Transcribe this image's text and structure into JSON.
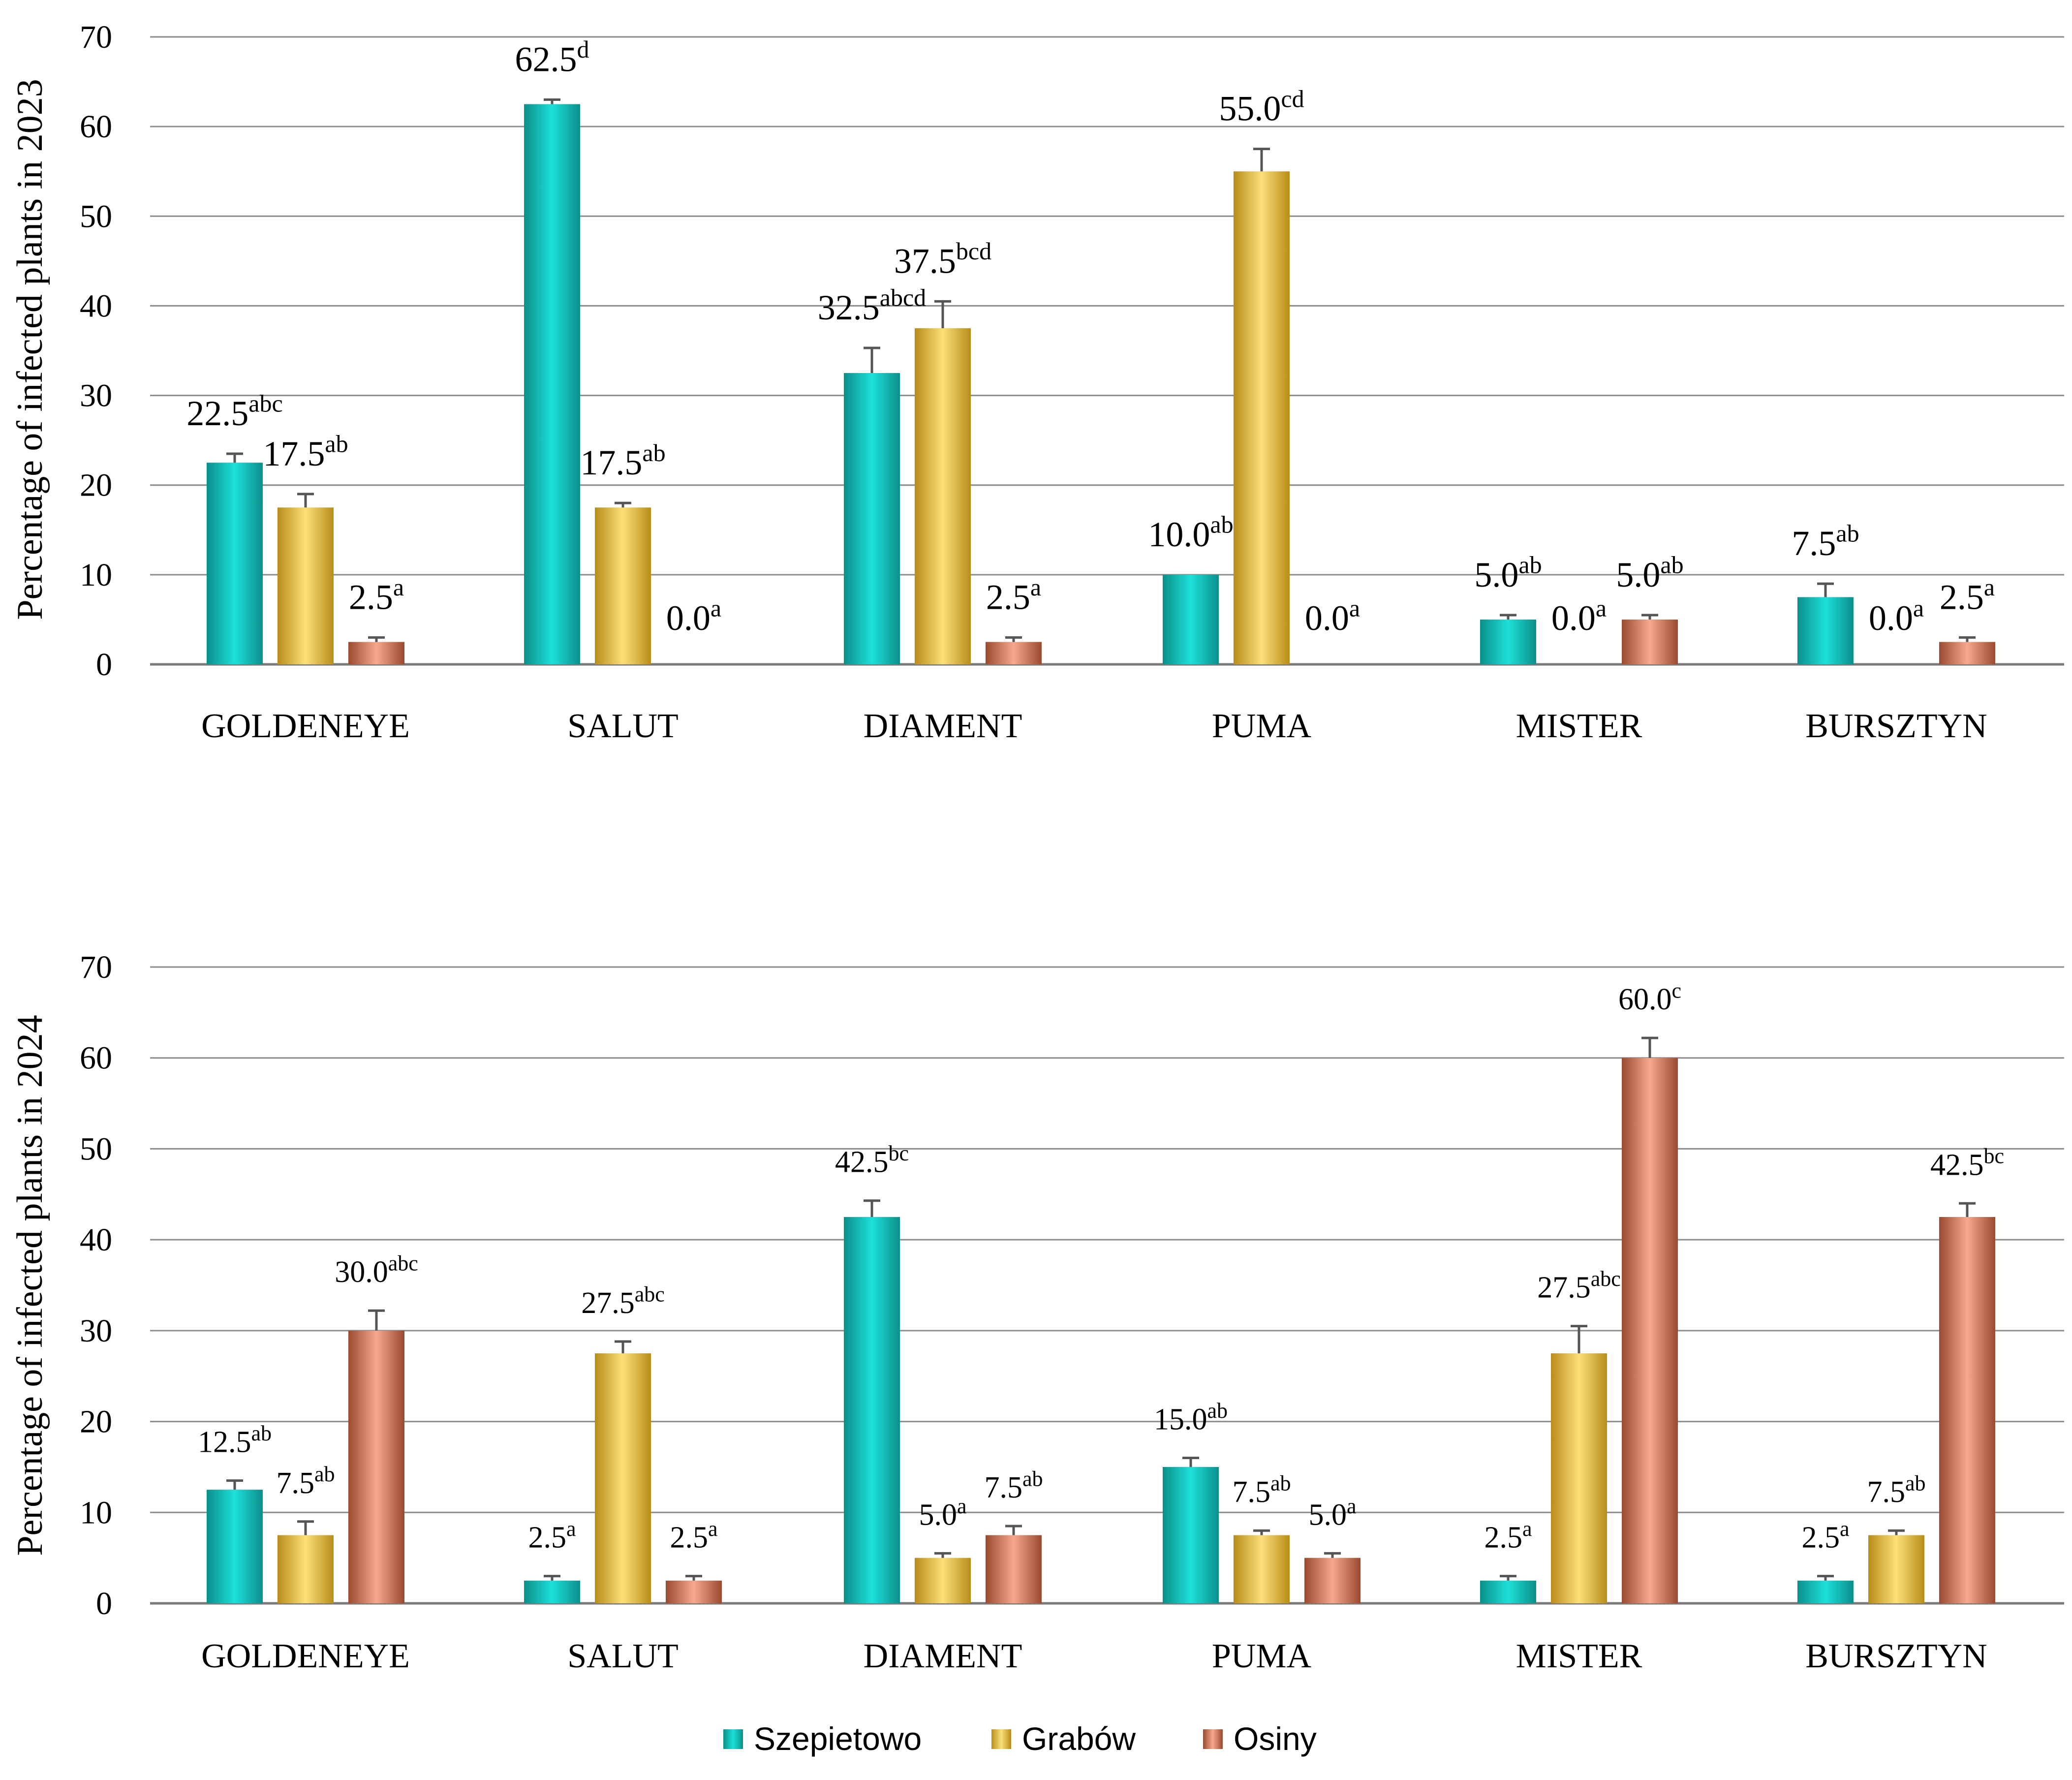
{
  "colors": {
    "Szepietowo": "#13c6c0",
    "Grabów": "#f4c43e",
    "Osiny": "#ee8f72",
    "grid": "#8c8c8c",
    "errorbar": "#555555"
  },
  "legend": [
    {
      "name": "Szepietowo",
      "color_key": "Szepietowo"
    },
    {
      "name": "Grabów",
      "color_key": "Grabów"
    },
    {
      "name": "Osiny",
      "color_key": "Osiny"
    }
  ],
  "chart_data": [
    {
      "type": "bar",
      "ylabel": "Percentage of infected plants in 2023",
      "ylim": [
        0,
        70
      ],
      "yticks": [
        0,
        10,
        20,
        30,
        40,
        50,
        60,
        70
      ],
      "categories": [
        "GOLDENEYE",
        "SALUT",
        "DIAMENT",
        "PUMA",
        "MISTER",
        "BURSZTYN"
      ],
      "series": [
        {
          "name": "Szepietowo",
          "values": [
            22.5,
            62.5,
            32.5,
            10.0,
            5.0,
            7.5
          ],
          "errors": [
            1.0,
            0.5,
            2.8,
            0.0,
            0.5,
            1.5
          ],
          "labels": [
            "22.5",
            "62.5",
            "32.5",
            "10.0",
            "5.0",
            "7.5"
          ],
          "letters": [
            "abc",
            "d",
            "abcd",
            "ab",
            "ab",
            "ab"
          ]
        },
        {
          "name": "Grabów",
          "values": [
            17.5,
            17.5,
            37.5,
            55.0,
            0.0,
            0.0
          ],
          "errors": [
            1.5,
            0.5,
            3.0,
            2.5,
            0.0,
            0.0
          ],
          "labels": [
            "17.5",
            "17.5",
            "37.5",
            "55.0",
            "0.0",
            "0.0"
          ],
          "letters": [
            "ab",
            "ab",
            "bcd",
            "cd",
            "a",
            "a"
          ]
        },
        {
          "name": "Osiny",
          "values": [
            2.5,
            0.0,
            2.5,
            0.0,
            5.0,
            2.5
          ],
          "errors": [
            0.5,
            0.0,
            0.5,
            0.0,
            0.5,
            0.5
          ],
          "labels": [
            "2.5",
            "0.0",
            "2.5",
            "0.0",
            "5.0",
            "2.5"
          ],
          "letters": [
            "a",
            "a",
            "a",
            "a",
            "ab",
            "a"
          ]
        }
      ]
    },
    {
      "type": "bar",
      "ylabel": "Percentage of infected plants in 2024",
      "ylim": [
        0,
        70
      ],
      "yticks": [
        0,
        10,
        20,
        30,
        40,
        50,
        60,
        70
      ],
      "categories": [
        "GOLDENEYE",
        "SALUT",
        "DIAMENT",
        "PUMA",
        "MISTER",
        "BURSZTYN"
      ],
      "series": [
        {
          "name": "Szepietowo",
          "values": [
            12.5,
            2.5,
            42.5,
            15.0,
            2.5,
            2.5
          ],
          "errors": [
            1.0,
            0.5,
            1.8,
            1.0,
            0.5,
            0.5
          ],
          "labels": [
            "12.5",
            "2.5",
            "42.5",
            "15.0",
            "2.5",
            "2.5"
          ],
          "letters": [
            "ab",
            "a",
            "bc",
            "ab",
            "a",
            "a"
          ]
        },
        {
          "name": "Grabów",
          "values": [
            7.5,
            27.5,
            5.0,
            7.5,
            27.5,
            7.5
          ],
          "errors": [
            1.5,
            1.3,
            0.5,
            0.5,
            3.0,
            0.5
          ],
          "labels": [
            "7.5",
            "27.5",
            "5.0",
            "7.5",
            "27.5",
            "7.5"
          ],
          "letters": [
            "ab",
            "abc",
            "a",
            "ab",
            "abc",
            "ab"
          ]
        },
        {
          "name": "Osiny",
          "values": [
            30.0,
            2.5,
            7.5,
            5.0,
            60.0,
            42.5
          ],
          "errors": [
            2.2,
            0.5,
            1.0,
            0.5,
            2.2,
            1.5
          ],
          "labels": [
            "30.0",
            "2.5",
            "7.5",
            "5.0",
            "60.0",
            "42.5"
          ],
          "letters": [
            "abc",
            "a",
            "ab",
            "a",
            "c",
            "bc"
          ]
        }
      ]
    }
  ]
}
